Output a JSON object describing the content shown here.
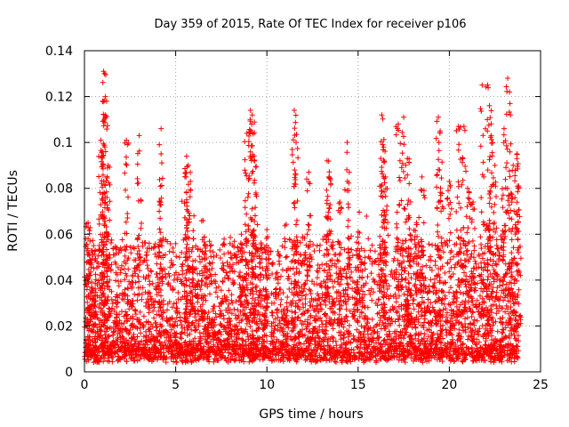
{
  "chart_data": {
    "type": "scatter",
    "title": "Day 359 of 2015, Rate Of TEC Index for receiver p106",
    "xlabel": "GPS time / hours",
    "ylabel": "ROTI / TECUs",
    "xlim": [
      0,
      25
    ],
    "ylim": [
      0,
      0.14
    ],
    "xticks": [
      0,
      5,
      10,
      15,
      20,
      25
    ],
    "xtick_labels": [
      "0",
      "5",
      "10",
      "15",
      "20",
      "25"
    ],
    "yticks": [
      0,
      0.02,
      0.04,
      0.06,
      0.08,
      0.1,
      0.12,
      0.14
    ],
    "ytick_labels": [
      "0",
      "0.02",
      "0.04",
      "0.06",
      "0.08",
      "0.1",
      "0.12",
      "0.14"
    ],
    "grid": true,
    "marker": "+",
    "color": "#ff0000",
    "series": [
      {
        "name": "ROTI",
        "note": "dense cloud of several thousand samples from 0 to ~23.8 h, baseline ~0.005-0.03 TECU, representative peaks listed",
        "x": [
          0.2,
          0.3,
          0.5,
          0.9,
          1.0,
          1.05,
          1.1,
          1.15,
          1.3,
          2.3,
          3.0,
          4.2,
          4.2,
          5.6,
          5.7,
          5.6,
          6.0,
          6.5,
          8.6,
          8.9,
          9.1,
          9.2,
          9.3,
          9.4,
          10.0,
          11.5,
          11.6,
          12.3,
          13.3,
          13.4,
          14.0,
          14.4,
          15.0,
          16.3,
          16.4,
          16.5,
          17.2,
          17.5,
          17.7,
          17.8,
          18.2,
          18.5,
          19.4,
          19.5,
          20.0,
          20.5,
          20.8,
          21.0,
          21.3,
          21.8,
          22.1,
          22.2,
          22.3,
          22.5,
          23.0,
          23.2,
          23.3,
          23.5,
          23.7,
          23.8
        ],
        "y": [
          0.065,
          0.057,
          0.055,
          0.101,
          0.118,
          0.131,
          0.13,
          0.12,
          0.09,
          0.101,
          0.103,
          0.106,
          0.095,
          0.094,
          0.09,
          0.075,
          0.068,
          0.066,
          0.06,
          0.104,
          0.114,
          0.112,
          0.094,
          0.078,
          0.062,
          0.114,
          0.1,
          0.087,
          0.092,
          0.085,
          0.074,
          0.1,
          0.061,
          0.112,
          0.098,
          0.085,
          0.108,
          0.111,
          0.093,
          0.082,
          0.065,
          0.085,
          0.111,
          0.105,
          0.083,
          0.107,
          0.107,
          0.08,
          0.074,
          0.125,
          0.125,
          0.116,
          0.103,
          0.09,
          0.106,
          0.128,
          0.122,
          0.09,
          0.095,
          0.081
        ]
      }
    ]
  }
}
